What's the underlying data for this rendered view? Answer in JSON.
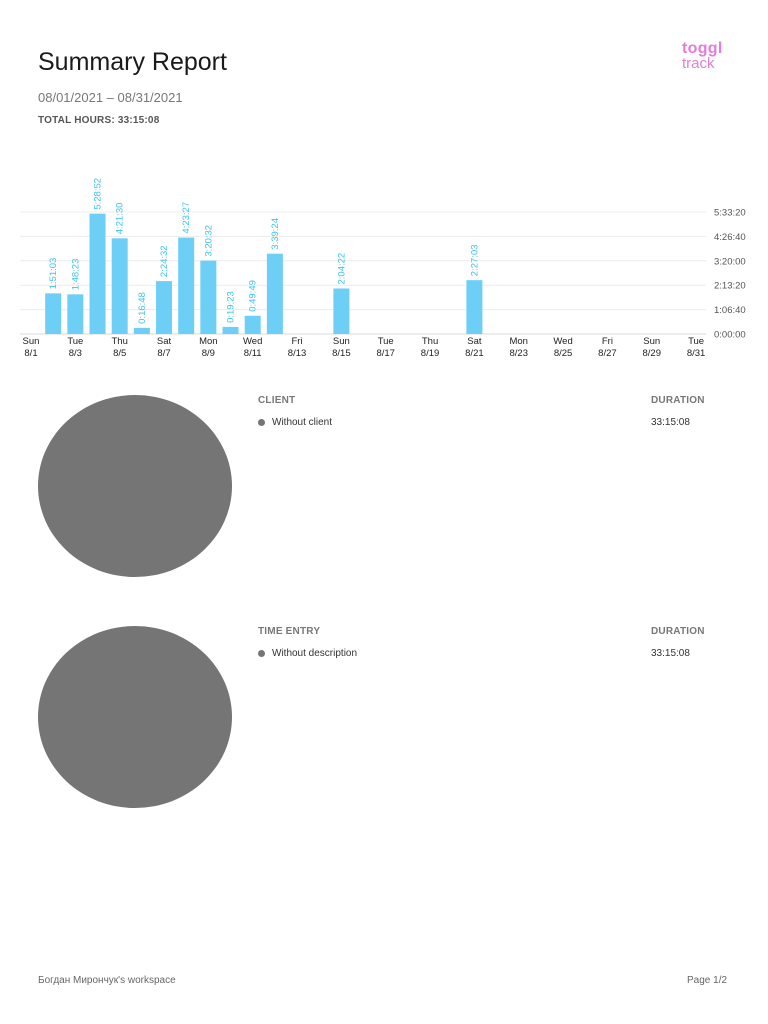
{
  "header": {
    "title": "Summary Report",
    "date_range": "08/01/2021 – 08/31/2021",
    "total_hours": "TOTAL HOURS: 33:15:08"
  },
  "logo": {
    "top": "toggl",
    "bottom": "track"
  },
  "colors": {
    "bar": "#6dcff6",
    "label": "#3ec3f0",
    "pie": "#757575",
    "logo": "#e57cd8"
  },
  "chart_data": {
    "type": "bar",
    "categories": [
      "8/1",
      "8/2",
      "8/3",
      "8/4",
      "8/5",
      "8/6",
      "8/7",
      "8/8",
      "8/9",
      "8/10",
      "8/11",
      "8/12",
      "8/13",
      "8/14",
      "8/15",
      "8/16",
      "8/17",
      "8/18",
      "8/19",
      "8/20",
      "8/21",
      "8/22",
      "8/23",
      "8/24",
      "8/25",
      "8/26",
      "8/27",
      "8/28",
      "8/29",
      "8/30",
      "8/31"
    ],
    "values_seconds": [
      0,
      6663,
      6503,
      19732,
      15690,
      1008,
      8672,
      15807,
      12032,
      1163,
      2989,
      13164,
      0,
      0,
      7462,
      0,
      0,
      0,
      0,
      0,
      8823,
      0,
      0,
      0,
      0,
      0,
      0,
      0,
      0,
      0,
      0
    ],
    "value_labels": [
      "",
      "1:51:03",
      "1:48:23",
      "5:28:52",
      "4:21:30",
      "0:16:48",
      "2:24:32",
      "4:23:27",
      "3:20:32",
      "0:19:23",
      "0:49:49",
      "3:39:24",
      "",
      "",
      "2:04:22",
      "",
      "",
      "",
      "",
      "",
      "2:27:03",
      "",
      "",
      "",
      "",
      "",
      "",
      "",
      "",
      "",
      ""
    ],
    "x_ticks": [
      {
        "day": "Sun",
        "date": "8/1"
      },
      {
        "day": "Tue",
        "date": "8/3"
      },
      {
        "day": "Thu",
        "date": "8/5"
      },
      {
        "day": "Sat",
        "date": "8/7"
      },
      {
        "day": "Mon",
        "date": "8/9"
      },
      {
        "day": "Wed",
        "date": "8/11"
      },
      {
        "day": "Fri",
        "date": "8/13"
      },
      {
        "day": "Sun",
        "date": "8/15"
      },
      {
        "day": "Tue",
        "date": "8/17"
      },
      {
        "day": "Thu",
        "date": "8/19"
      },
      {
        "day": "Sat",
        "date": "8/21"
      },
      {
        "day": "Mon",
        "date": "8/23"
      },
      {
        "day": "Wed",
        "date": "8/25"
      },
      {
        "day": "Fri",
        "date": "8/27"
      },
      {
        "day": "Sun",
        "date": "8/29"
      },
      {
        "day": "Tue",
        "date": "8/31"
      }
    ],
    "y_ticks": [
      "0:00:00",
      "1:06:40",
      "2:13:20",
      "3:20:00",
      "4:26:40",
      "5:33:20"
    ],
    "y_tick_seconds": [
      0,
      4000,
      8000,
      12000,
      16000,
      20000
    ],
    "ylim_seconds": [
      0,
      20000
    ],
    "grid": true
  },
  "client_section": {
    "header_label": "CLIENT",
    "header_duration": "DURATION",
    "rows": [
      {
        "label": "Without client",
        "duration": "33:15:08"
      }
    ]
  },
  "entry_section": {
    "header_label": "TIME ENTRY",
    "header_duration": "DURATION",
    "rows": [
      {
        "label": "Without description",
        "duration": "33:15:08"
      }
    ]
  },
  "footer": {
    "workspace": "Богдан Мирончук's workspace",
    "page": "Page 1/2"
  }
}
